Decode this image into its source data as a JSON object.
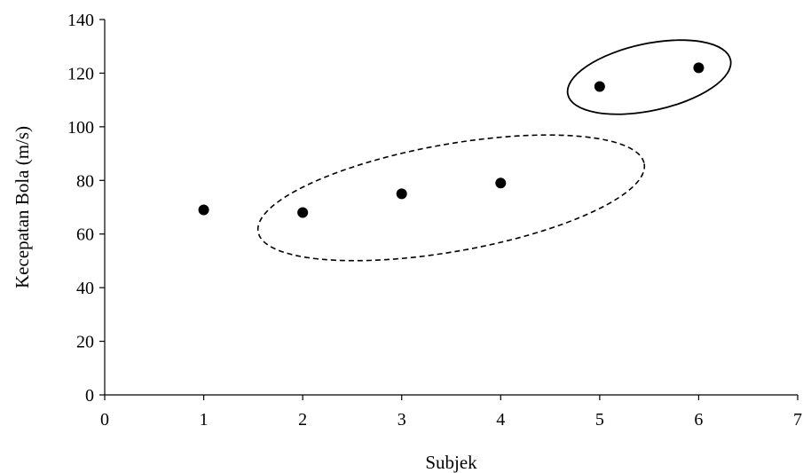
{
  "chart_data": {
    "type": "scatter",
    "title": "",
    "xlabel": "Subjek",
    "ylabel": "Kecepatan Bola (m/s)",
    "xlim": [
      0,
      7
    ],
    "ylim": [
      0,
      140
    ],
    "x_ticks": [
      0,
      1,
      2,
      3,
      4,
      5,
      6,
      7
    ],
    "y_ticks": [
      0,
      20,
      40,
      60,
      80,
      100,
      120,
      140
    ],
    "grid": false,
    "legend": "none",
    "series": [
      {
        "x": [
          1,
          2,
          3,
          4,
          5,
          6
        ],
        "y": [
          69,
          68,
          75,
          79,
          115,
          122
        ],
        "color": "#000000"
      }
    ],
    "annotations": [
      {
        "shape": "ellipse",
        "style": "dashed",
        "center": [
          3.5,
          73.5
        ],
        "semi_axes": [
          1.98,
          20
        ],
        "rotation_deg": -10
      },
      {
        "shape": "ellipse",
        "style": "solid",
        "center": [
          5.5,
          118.5
        ],
        "semi_axes": [
          0.84,
          12.5
        ],
        "rotation_deg": -12
      }
    ]
  }
}
